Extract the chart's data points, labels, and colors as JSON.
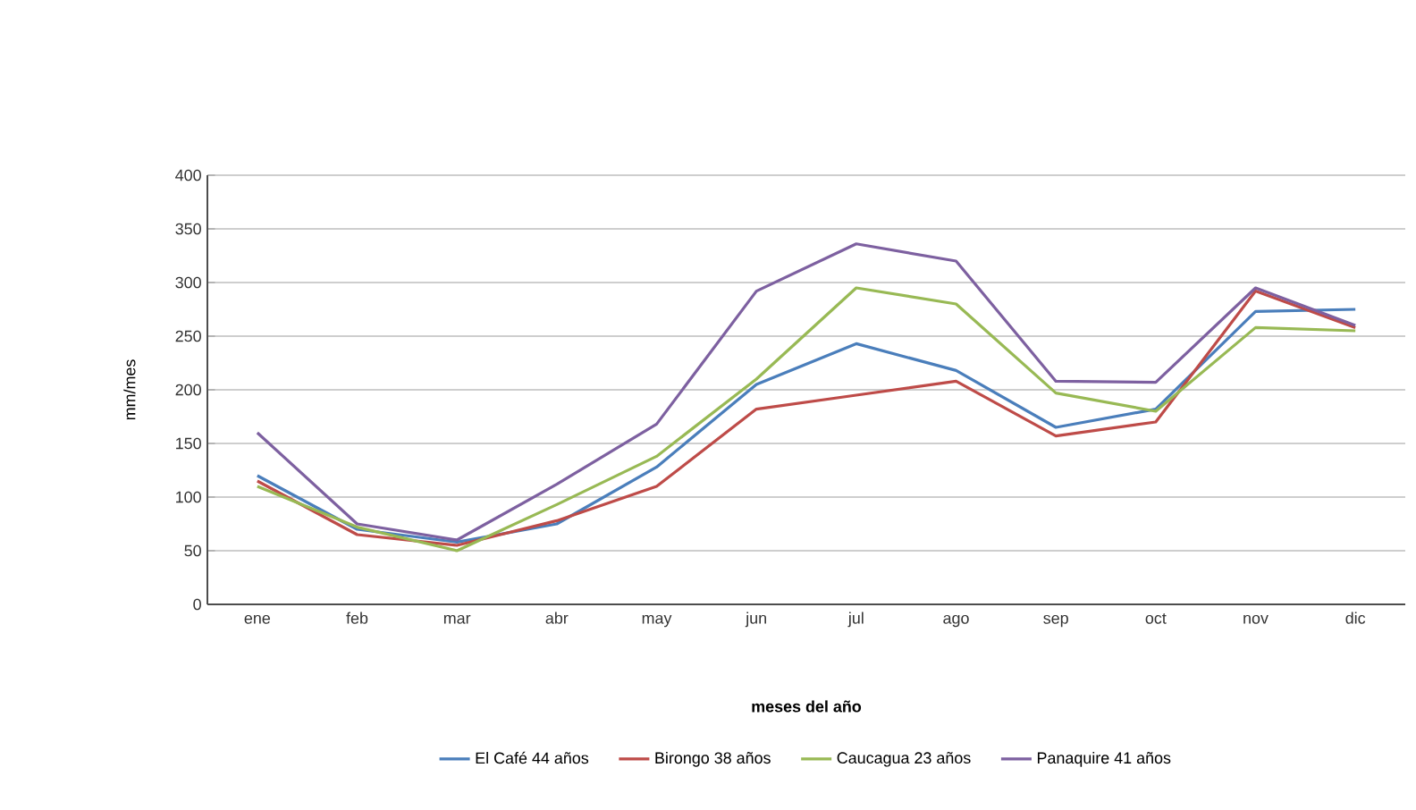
{
  "chart_data": {
    "type": "line",
    "xlabel": "meses del año",
    "ylabel": "mm/mes",
    "categories": [
      "ene",
      "feb",
      "mar",
      "abr",
      "may",
      "jun",
      "jul",
      "ago",
      "sep",
      "oct",
      "nov",
      "dic"
    ],
    "series": [
      {
        "name": "El Café 44 años",
        "color": "#4a7ebb",
        "values": [
          120,
          70,
          58,
          75,
          128,
          205,
          243,
          218,
          165,
          182,
          273,
          275
        ]
      },
      {
        "name": "Birongo 38 años",
        "color": "#be4b48",
        "values": [
          115,
          65,
          55,
          78,
          110,
          182,
          195,
          208,
          157,
          170,
          292,
          258
        ]
      },
      {
        "name": "Caucagua 23 años",
        "color": "#98b954",
        "values": [
          110,
          72,
          50,
          93,
          138,
          210,
          295,
          280,
          197,
          180,
          258,
          255
        ]
      },
      {
        "name": "Panaquire 41 años",
        "color": "#7d60a0",
        "values": [
          160,
          75,
          60,
          112,
          168,
          292,
          336,
          320,
          208,
          207,
          295,
          260
        ]
      }
    ],
    "ylim": [
      0,
      400
    ],
    "yticks": [
      0,
      50,
      100,
      150,
      200,
      250,
      300,
      350,
      400
    ],
    "grid": "y",
    "legend": "bottom"
  }
}
